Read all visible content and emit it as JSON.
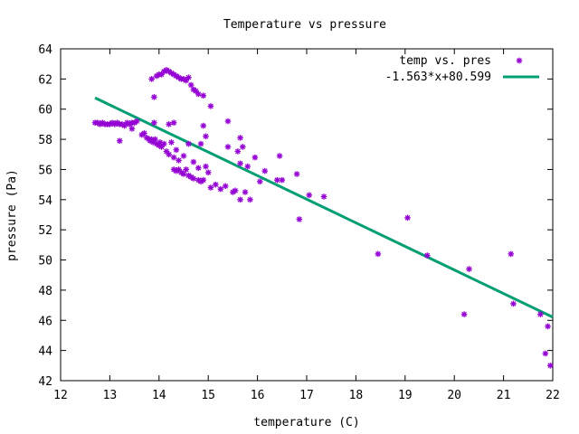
{
  "chart_data": {
    "type": "scatter",
    "title": "Temperature vs pressure",
    "xlabel": "temperature (C)",
    "ylabel": "pressure (Pa)",
    "xlim": [
      12,
      22
    ],
    "ylim": [
      42,
      64
    ],
    "xticks": [
      "12",
      "13",
      "14",
      "15",
      "16",
      "17",
      "18",
      "19",
      "20",
      "21",
      "22"
    ],
    "yticks": [
      "42",
      "44",
      "46",
      "48",
      "50",
      "52",
      "54",
      "56",
      "58",
      "60",
      "62",
      "64"
    ],
    "grid": false,
    "legend_position": "top-right",
    "series": [
      {
        "name": "temp vs. pres",
        "kind": "points",
        "marker": "asterisk",
        "color": "#9400d3",
        "points": [
          [
            12.7,
            59.1
          ],
          [
            12.75,
            59.1
          ],
          [
            12.8,
            59.0
          ],
          [
            12.85,
            59.1
          ],
          [
            12.9,
            59.0
          ],
          [
            12.95,
            59.0
          ],
          [
            13.0,
            59.0
          ],
          [
            13.05,
            59.1
          ],
          [
            13.1,
            59.0
          ],
          [
            13.15,
            59.1
          ],
          [
            13.2,
            59.0
          ],
          [
            13.25,
            59.0
          ],
          [
            13.3,
            58.9
          ],
          [
            13.35,
            59.1
          ],
          [
            13.4,
            59.0
          ],
          [
            13.45,
            59.1
          ],
          [
            13.5,
            59.1
          ],
          [
            13.55,
            59.2
          ],
          [
            13.2,
            57.9
          ],
          [
            13.45,
            58.7
          ],
          [
            13.65,
            58.3
          ],
          [
            13.7,
            58.4
          ],
          [
            13.75,
            58.1
          ],
          [
            13.8,
            58.0
          ],
          [
            13.82,
            57.9
          ],
          [
            13.85,
            58.0
          ],
          [
            13.88,
            57.8
          ],
          [
            13.92,
            58.0
          ],
          [
            13.95,
            57.7
          ],
          [
            14.0,
            57.6
          ],
          [
            14.02,
            57.8
          ],
          [
            14.05,
            57.5
          ],
          [
            14.1,
            57.7
          ],
          [
            14.15,
            57.2
          ],
          [
            14.2,
            57.0
          ],
          [
            14.25,
            57.8
          ],
          [
            14.3,
            56.8
          ],
          [
            14.35,
            57.3
          ],
          [
            14.4,
            56.6
          ],
          [
            14.5,
            56.9
          ],
          [
            14.6,
            57.7
          ],
          [
            14.7,
            56.5
          ],
          [
            14.8,
            56.1
          ],
          [
            14.85,
            57.7
          ],
          [
            14.3,
            56.0
          ],
          [
            14.35,
            55.9
          ],
          [
            14.4,
            56.0
          ],
          [
            14.45,
            55.8
          ],
          [
            14.5,
            55.7
          ],
          [
            14.55,
            56.0
          ],
          [
            14.6,
            55.6
          ],
          [
            14.65,
            55.5
          ],
          [
            14.7,
            55.4
          ],
          [
            14.8,
            55.3
          ],
          [
            14.85,
            55.2
          ],
          [
            14.9,
            55.3
          ],
          [
            14.95,
            56.2
          ],
          [
            15.0,
            55.8
          ],
          [
            15.05,
            54.8
          ],
          [
            15.15,
            55.0
          ],
          [
            15.25,
            54.7
          ],
          [
            15.35,
            54.9
          ],
          [
            15.5,
            54.5
          ],
          [
            15.55,
            54.6
          ],
          [
            15.65,
            54.0
          ],
          [
            15.75,
            54.5
          ],
          [
            15.85,
            54.0
          ],
          [
            15.6,
            57.2
          ],
          [
            15.65,
            56.4
          ],
          [
            15.7,
            57.5
          ],
          [
            15.8,
            56.2
          ],
          [
            15.4,
            57.5
          ],
          [
            15.4,
            59.2
          ],
          [
            15.65,
            58.1
          ],
          [
            15.95,
            56.8
          ],
          [
            16.05,
            55.2
          ],
          [
            16.15,
            55.9
          ],
          [
            16.4,
            55.3
          ],
          [
            16.5,
            55.3
          ],
          [
            16.45,
            56.9
          ],
          [
            16.8,
            55.7
          ],
          [
            16.85,
            52.7
          ],
          [
            17.05,
            54.3
          ],
          [
            17.35,
            54.2
          ],
          [
            13.85,
            62.0
          ],
          [
            13.9,
            60.8
          ],
          [
            13.95,
            62.2
          ],
          [
            14.0,
            62.3
          ],
          [
            14.05,
            62.3
          ],
          [
            14.1,
            62.5
          ],
          [
            14.15,
            62.6
          ],
          [
            14.2,
            62.5
          ],
          [
            14.25,
            62.4
          ],
          [
            14.3,
            62.3
          ],
          [
            14.35,
            62.2
          ],
          [
            14.4,
            62.1
          ],
          [
            14.45,
            62.0
          ],
          [
            14.5,
            62.0
          ],
          [
            14.55,
            61.9
          ],
          [
            14.6,
            62.1
          ],
          [
            14.65,
            61.6
          ],
          [
            14.7,
            61.3
          ],
          [
            14.75,
            61.2
          ],
          [
            14.8,
            61.0
          ],
          [
            14.9,
            60.9
          ],
          [
            15.05,
            60.2
          ],
          [
            14.9,
            58.9
          ],
          [
            14.95,
            58.2
          ],
          [
            13.9,
            59.1
          ],
          [
            14.2,
            59.0
          ],
          [
            14.3,
            59.1
          ],
          [
            18.45,
            50.4
          ],
          [
            19.05,
            52.8
          ],
          [
            19.45,
            50.3
          ],
          [
            20.2,
            46.4
          ],
          [
            20.3,
            49.4
          ],
          [
            21.15,
            50.4
          ],
          [
            21.2,
            47.1
          ],
          [
            21.75,
            46.4
          ],
          [
            21.9,
            45.6
          ],
          [
            21.85,
            43.8
          ],
          [
            21.95,
            43.0
          ]
        ]
      },
      {
        "name": "-1.563*x+80.599",
        "kind": "line",
        "slope": -1.563,
        "intercept": 80.599,
        "x_range": [
          12.7,
          22
        ],
        "color": "#009e73"
      }
    ]
  }
}
